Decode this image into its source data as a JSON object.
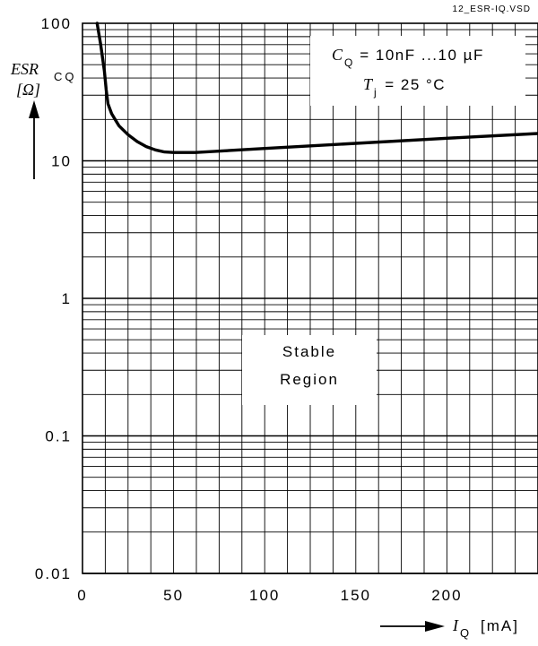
{
  "file_tag": "12_ESR-IQ.VSD",
  "chart_data": {
    "type": "line",
    "x_axis": {
      "ticks": [
        0,
        50,
        100,
        150,
        200
      ],
      "tick_labels": [
        "0",
        "50",
        "100",
        "150",
        "200"
      ],
      "range": [
        0,
        250
      ],
      "symbol": "I",
      "subscript": "Q",
      "unit": "[mA]"
    },
    "y_axis": {
      "scale": "log",
      "ticks": [
        0.01,
        0.1,
        1,
        10,
        100
      ],
      "tick_labels": [
        "0.01",
        "0.1",
        "1",
        "10",
        "100"
      ],
      "range": [
        0.01,
        100
      ],
      "symbol": "ESR",
      "subscript": "CQ",
      "unit": "[Ω]"
    },
    "grid": true,
    "series": [
      {
        "x": [
          8,
          10,
          12,
          13,
          14,
          16,
          20,
          25,
          30,
          35,
          40,
          45,
          50,
          62,
          100,
          150,
          200,
          250
        ],
        "y": [
          100,
          70,
          45,
          33,
          26,
          22,
          18,
          15.5,
          13.8,
          12.7,
          12,
          11.6,
          11.5,
          11.5,
          12.3,
          13.4,
          14.6,
          15.8
        ]
      }
    ],
    "annotations": [
      {
        "lines": [
          "C",
          "Q",
          " = 10nF ...10 µF"
        ],
        "position": "top-right"
      },
      {
        "lines": [
          "T",
          "j",
          " = 25 °C"
        ],
        "position": "top-right"
      },
      {
        "text": "Stable",
        "position": "center"
      },
      {
        "text": "Region",
        "position": "center"
      }
    ]
  }
}
